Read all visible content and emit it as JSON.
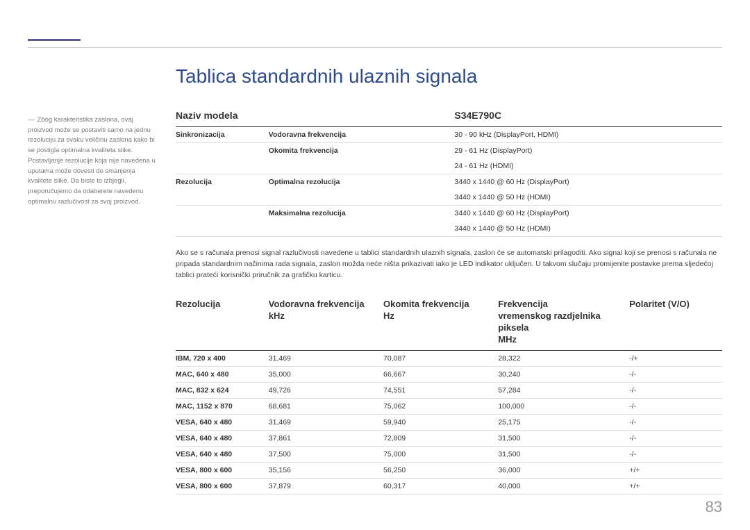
{
  "title": "Tablica standardnih ulaznih signala",
  "sidebar_note": "Zbog karakteristika zaslona, ovaj proizvod može se postaviti samo na jednu rezoluciju za svaku veličinu zaslona kako bi se postigla optimalna kvaliteta slike. Postavljanje rezolucije koja nije navedena u uputama može dovesti do smanjenja kvalitete slike. Da biste to izbjegli, preporučujemo da odaberete navedenu optimalnu razlučivost za svoj proizvod.",
  "table1": {
    "header_left": "Naziv modela",
    "header_right": "S34E790C",
    "rows": [
      {
        "c1": "Sinkronizacija",
        "c2": "Vodoravna frekvencija",
        "c3": "30 - 90 kHz (DisplayPort, HDMI)"
      },
      {
        "c1": "",
        "c2": "Okomita frekvencija",
        "c3": "29 - 61 Hz (DisplayPort)\n24 - 61 Hz (HDMI)"
      },
      {
        "c1": "Rezolucija",
        "c2": "Optimalna rezolucija",
        "c3": "3440 x 1440 @ 60 Hz (DisplayPort)\n3440 x 1440 @ 50 Hz (HDMI)"
      },
      {
        "c1": "",
        "c2": "Maksimalna rezolucija",
        "c3": "3440 x 1440 @ 60 Hz (DisplayPort)\n3440 x 1440 @ 50 Hz (HDMI)"
      }
    ]
  },
  "paragraph": "Ako se s računala prenosi signal razlučivosti navedene u tablici standardnih ulaznih signala, zaslon će se automatski prilagoditi. Ako signal koji se prenosi s računala ne pripada standardnim načinima rada signala, zaslon možda neće ništa prikazivati iako je LED indikator uključen. U takvom slučaju promijenite postavke prema sljedećoj tablici prateći korisnički priručnik za grafičku karticu.",
  "table2": {
    "headers": [
      "Rezolucija",
      "Vodoravna frekvencija kHz",
      "Okomita frekvencija Hz",
      "Frekvencija vremenskog razdjelnika piksela MHz",
      "Polaritet (V/O)"
    ],
    "rows": [
      [
        "IBM, 720 x 400",
        "31,469",
        "70,087",
        "28,322",
        "-/+"
      ],
      [
        "MAC, 640 x 480",
        "35,000",
        "66,667",
        "30,240",
        "-/-"
      ],
      [
        "MAC, 832 x 624",
        "49,726",
        "74,551",
        "57,284",
        "-/-"
      ],
      [
        "MAC, 1152 x 870",
        "68,681",
        "75,062",
        "100,000",
        "-/-"
      ],
      [
        "VESA, 640 x 480",
        "31,469",
        "59,940",
        "25,175",
        "-/-"
      ],
      [
        "VESA, 640 x 480",
        "37,861",
        "72,809",
        "31,500",
        "-/-"
      ],
      [
        "VESA, 640 x 480",
        "37,500",
        "75,000",
        "31,500",
        "-/-"
      ],
      [
        "VESA, 800 x 600",
        "35,156",
        "56,250",
        "36,000",
        "+/+"
      ],
      [
        "VESA, 800 x 600",
        "37,879",
        "60,317",
        "40,000",
        "+/+"
      ]
    ]
  },
  "page_number": "83",
  "colors": {
    "title": "#2e4b8f",
    "top_marker": "#5a5a9a",
    "text": "#333333",
    "muted": "#7a7a7a",
    "border_dark": "#333333",
    "border_light": "#dddddd",
    "page_num": "#999999"
  }
}
